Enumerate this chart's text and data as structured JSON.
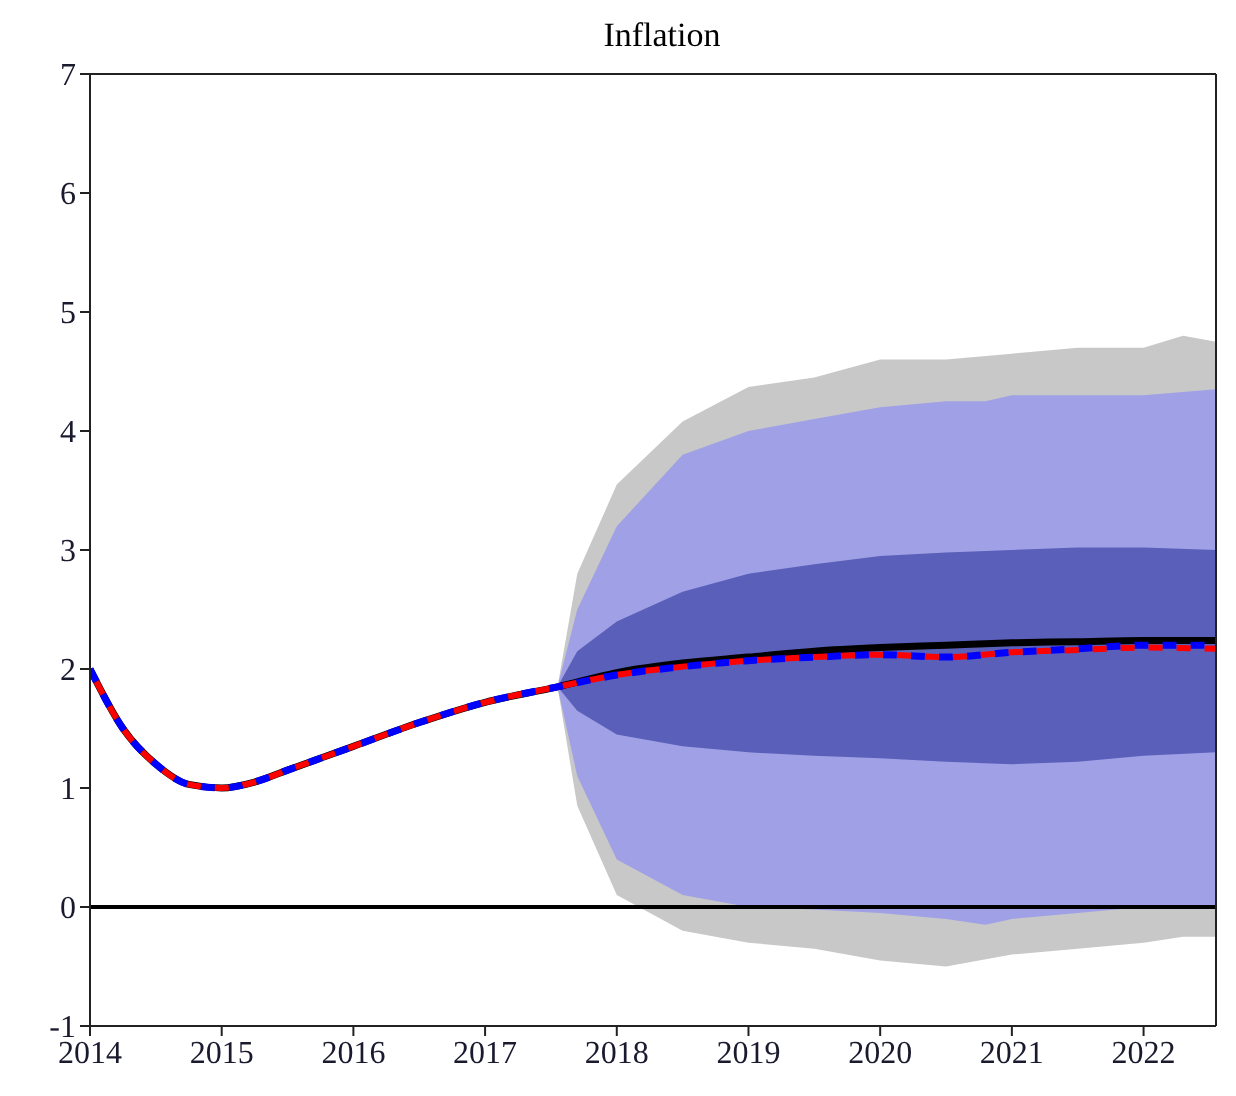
{
  "chart_data": {
    "type": "line",
    "title": "Inflation",
    "xlim": [
      2014,
      2022.55
    ],
    "xticks": [
      2014,
      2015,
      2016,
      2017,
      2018,
      2019,
      2020,
      2021,
      2022
    ],
    "ylim": [
      -1,
      7
    ],
    "yticks": [
      -1,
      0,
      1,
      2,
      3,
      4,
      5,
      6,
      7
    ],
    "grid": false,
    "ref_lines": [
      {
        "axis": "y",
        "value": 0,
        "color": "#000000",
        "line_style": "solid"
      }
    ],
    "series": [
      {
        "type": "area",
        "color": "#c8c8c8",
        "x": [
          2017.55,
          2017.7,
          2018,
          2018.5,
          2019,
          2019.5,
          2020,
          2020.5,
          2021,
          2021.5,
          2022,
          2022.3,
          2022.55
        ],
        "values": [
          null,
          null,
          null,
          null,
          null,
          null,
          null,
          null,
          null,
          null,
          null,
          null,
          null
        ],
        "lower": [
          1.85,
          0.85,
          0.1,
          -0.2,
          -0.3,
          -0.35,
          -0.45,
          -0.5,
          -0.4,
          -0.35,
          -0.3,
          -0.25,
          -0.25
        ],
        "upper": [
          1.85,
          2.8,
          3.55,
          4.08,
          4.37,
          4.45,
          4.6,
          4.6,
          4.65,
          4.7,
          4.7,
          4.8,
          4.75
        ]
      },
      {
        "type": "area",
        "color": "#a0a0e6",
        "x": [
          2017.55,
          2017.7,
          2018,
          2018.5,
          2019,
          2019.5,
          2020,
          2020.5,
          2020.8,
          2021,
          2021.5,
          2022,
          2022.55
        ],
        "values": [
          null,
          null,
          null,
          null,
          null,
          null,
          null,
          null,
          null,
          null,
          null,
          null,
          null
        ],
        "lower": [
          1.85,
          1.1,
          0.4,
          0.1,
          0,
          -0.02,
          -0.05,
          -0.1,
          -0.15,
          -0.1,
          -0.05,
          0,
          0
        ],
        "upper": [
          1.85,
          2.5,
          3.2,
          3.8,
          4.0,
          4.1,
          4.2,
          4.25,
          4.25,
          4.3,
          4.3,
          4.3,
          4.35
        ]
      },
      {
        "type": "area",
        "color": "#5a5fb9",
        "x": [
          2017.55,
          2017.7,
          2018,
          2018.5,
          2019,
          2019.5,
          2020,
          2020.5,
          2021,
          2021.5,
          2022,
          2022.55
        ],
        "values": [
          null,
          null,
          null,
          null,
          null,
          null,
          null,
          null,
          null,
          null,
          null,
          null
        ],
        "lower": [
          1.85,
          1.65,
          1.45,
          1.35,
          1.3,
          1.27,
          1.25,
          1.22,
          1.2,
          1.22,
          1.27,
          1.3
        ],
        "upper": [
          1.85,
          2.15,
          2.4,
          2.65,
          2.8,
          2.88,
          2.95,
          2.98,
          3.0,
          3.02,
          3.02,
          3.0
        ]
      },
      {
        "color": "#000000",
        "line_style": "solid",
        "x": [
          2014,
          2014.25,
          2014.5,
          2014.75,
          2015,
          2015.25,
          2015.5,
          2016,
          2016.5,
          2017,
          2017.55,
          2018,
          2018.5,
          2019,
          2019.5,
          2020,
          2020.5,
          2021,
          2021.5,
          2022,
          2022.55
        ],
        "values": [
          2.0,
          1.5,
          1.2,
          1.03,
          1.0,
          1.05,
          1.15,
          1.35,
          1.55,
          1.72,
          1.85,
          1.97,
          2.05,
          2.1,
          2.15,
          2.18,
          2.2,
          2.22,
          2.23,
          2.24,
          2.24
        ]
      },
      {
        "color": "#0000ff",
        "line_style": "dashed",
        "x": [
          2014,
          2014.25,
          2014.5,
          2014.75,
          2015,
          2015.25,
          2015.5,
          2016,
          2016.5,
          2017,
          2017.55,
          2018,
          2018.5,
          2019,
          2019.5,
          2020,
          2020.5,
          2021,
          2021.5,
          2022,
          2022.55
        ],
        "values": [
          2.0,
          1.5,
          1.2,
          1.03,
          1.0,
          1.05,
          1.15,
          1.35,
          1.55,
          1.72,
          1.85,
          1.95,
          2.02,
          2.07,
          2.1,
          2.12,
          2.1,
          2.14,
          2.17,
          2.2,
          2.2
        ]
      },
      {
        "color": "#ff0000",
        "line_style": "dashed",
        "x": [
          2014,
          2014.25,
          2014.5,
          2014.75,
          2015,
          2015.25,
          2015.5,
          2016,
          2016.5,
          2017,
          2017.55,
          2018,
          2018.5,
          2019,
          2019.5,
          2020,
          2020.5,
          2021,
          2021.5,
          2022,
          2022.55
        ],
        "values": [
          2.0,
          1.5,
          1.2,
          1.03,
          1.0,
          1.05,
          1.15,
          1.35,
          1.55,
          1.72,
          1.85,
          1.95,
          2.02,
          2.07,
          2.1,
          2.12,
          2.1,
          2.14,
          2.16,
          2.18,
          2.17
        ]
      }
    ]
  }
}
